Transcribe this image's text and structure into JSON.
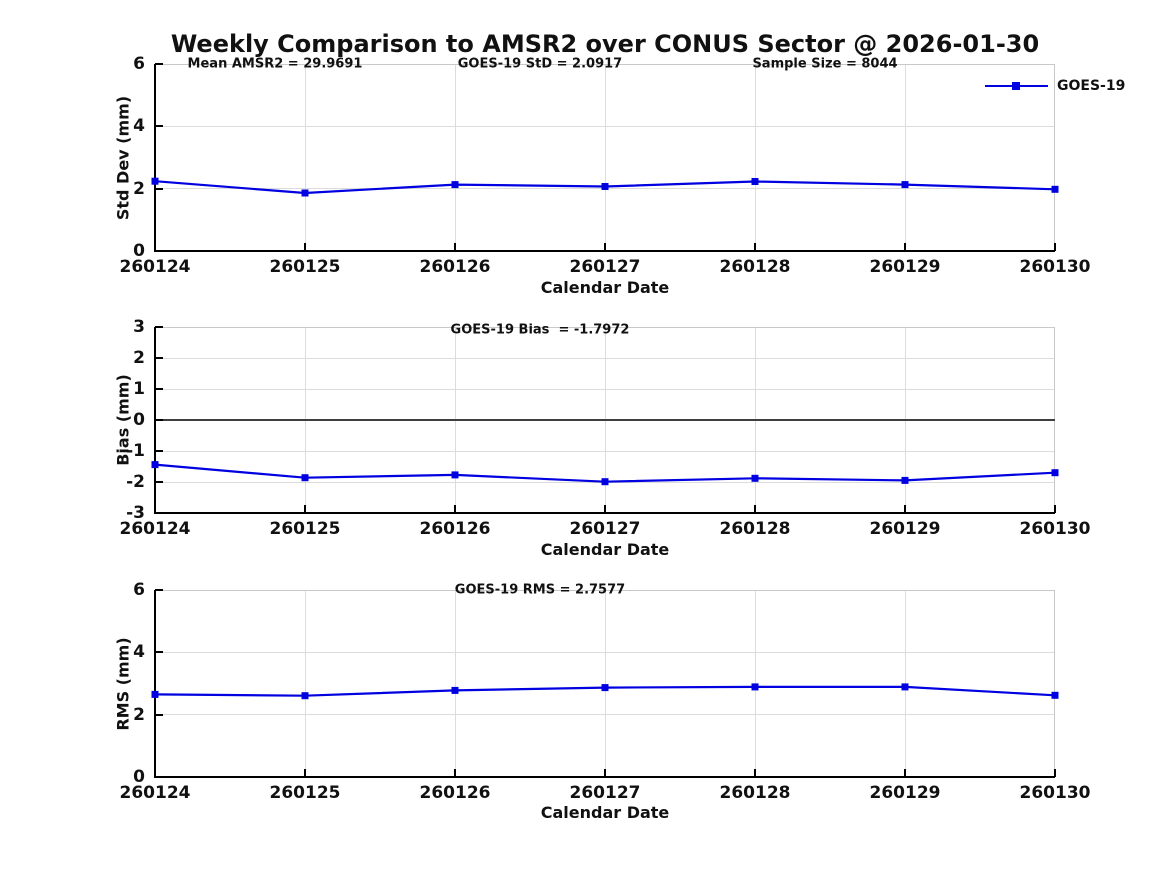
{
  "title": "Weekly Comparison to AMSR2 over CONUS Sector @ 2026-01-30",
  "colors": {
    "line": "#0000e0",
    "grid": "#dcdcdc",
    "axis": "#000000",
    "zero_line": "#3f3f3f",
    "box_edge": "#c9c9c9"
  },
  "chart_data": [
    {
      "type": "line",
      "name": "std-dev-vs-date",
      "categories": [
        "260124",
        "260125",
        "260126",
        "260127",
        "260128",
        "260129",
        "260130"
      ],
      "series": [
        {
          "name": "GOES-19",
          "marker": "square",
          "color": "#0000e0",
          "values": [
            2.24,
            1.86,
            2.13,
            2.07,
            2.23,
            2.13,
            1.98
          ]
        }
      ],
      "title": "",
      "xlabel": "Calendar Date",
      "ylabel": "Std Dev (mm)",
      "ylim": [
        0,
        6
      ],
      "yticks": [
        0,
        2,
        4,
        6
      ],
      "grid": true,
      "zero_line": false,
      "legend": {
        "label": "GOES-19",
        "position": "northeast"
      },
      "annotations": [
        {
          "text": "Mean AMSR2 = 29.9691"
        },
        {
          "text": "GOES-19 StD = 2.0917"
        },
        {
          "text": "Sample Size = 8044"
        }
      ]
    },
    {
      "type": "line",
      "name": "bias-vs-date",
      "categories": [
        "260124",
        "260125",
        "260126",
        "260127",
        "260128",
        "260129",
        "260130"
      ],
      "series": [
        {
          "name": "GOES-19",
          "marker": "square",
          "color": "#0000e0",
          "values": [
            -1.44,
            -1.86,
            -1.77,
            -1.99,
            -1.88,
            -1.95,
            -1.7
          ]
        }
      ],
      "title": "",
      "xlabel": "Calendar Date",
      "ylabel": "Bias (mm)",
      "ylim": [
        -3,
        3
      ],
      "yticks": [
        -3,
        -2,
        -1,
        0,
        1,
        2,
        3
      ],
      "grid": true,
      "zero_line": true,
      "annotations": [
        {
          "text": "GOES-19 Bias  = -1.7972"
        }
      ]
    },
    {
      "type": "line",
      "name": "rms-vs-date",
      "categories": [
        "260124",
        "260125",
        "260126",
        "260127",
        "260128",
        "260129",
        "260130"
      ],
      "series": [
        {
          "name": "GOES-19",
          "marker": "square",
          "color": "#0000e0",
          "values": [
            2.65,
            2.61,
            2.78,
            2.87,
            2.89,
            2.89,
            2.62
          ]
        }
      ],
      "title": "",
      "xlabel": "Calendar Date",
      "ylabel": "RMS (mm)",
      "ylim": [
        0,
        6
      ],
      "yticks": [
        0,
        2,
        4,
        6
      ],
      "grid": true,
      "zero_line": false,
      "annotations": [
        {
          "text": "GOES-19 RMS = 2.7577"
        }
      ]
    }
  ]
}
